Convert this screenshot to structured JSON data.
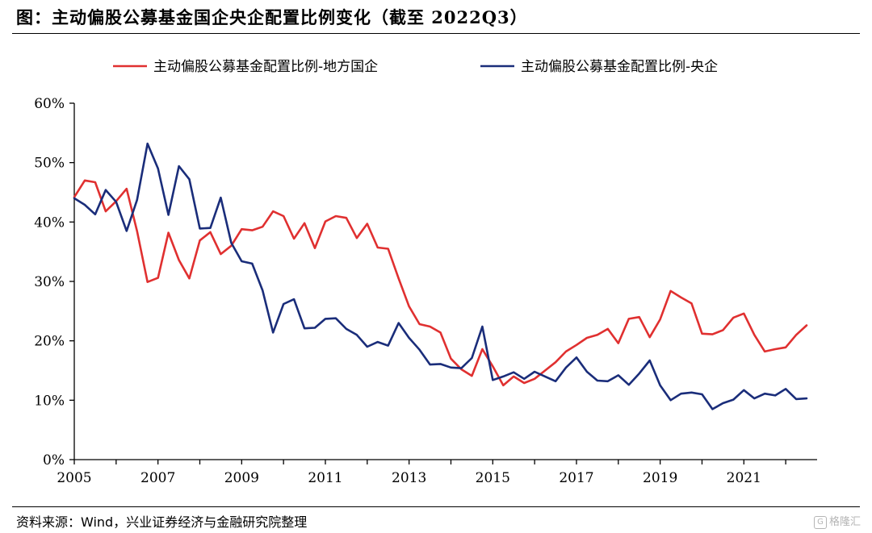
{
  "header": {
    "title": "图：主动偏股公募基金国企央企配置比例变化（截至 2022Q3）"
  },
  "footer": {
    "source": "资料来源：Wind，兴业证券经济与金融研究院整理",
    "watermark_text": "格隆汇",
    "watermark_icon": "g-logo-icon"
  },
  "chart_data": {
    "type": "line",
    "title": "",
    "xlabel": "",
    "ylabel": "",
    "ylim": [
      0,
      60
    ],
    "y_ticks": [
      "0%",
      "10%",
      "20%",
      "30%",
      "40%",
      "50%",
      "60%"
    ],
    "x_ticks": [
      "2005",
      "2007",
      "2009",
      "2011",
      "2013",
      "2015",
      "2017",
      "2019",
      "2021"
    ],
    "xlim": [
      "2005Q1",
      "2022Q4"
    ],
    "x": [
      "2005Q1",
      "2005Q2",
      "2005Q3",
      "2005Q4",
      "2006Q1",
      "2006Q2",
      "2006Q3",
      "2006Q4",
      "2007Q1",
      "2007Q2",
      "2007Q3",
      "2007Q4",
      "2008Q1",
      "2008Q2",
      "2008Q3",
      "2008Q4",
      "2009Q1",
      "2009Q2",
      "2009Q3",
      "2009Q4",
      "2010Q1",
      "2010Q2",
      "2010Q3",
      "2010Q4",
      "2011Q1",
      "2011Q2",
      "2011Q3",
      "2011Q4",
      "2012Q1",
      "2012Q2",
      "2012Q3",
      "2012Q4",
      "2013Q1",
      "2013Q2",
      "2013Q3",
      "2013Q4",
      "2014Q1",
      "2014Q2",
      "2014Q3",
      "2014Q4",
      "2015Q1",
      "2015Q2",
      "2015Q3",
      "2015Q4",
      "2016Q1",
      "2016Q2",
      "2016Q3",
      "2016Q4",
      "2017Q1",
      "2017Q2",
      "2017Q3",
      "2017Q4",
      "2018Q1",
      "2018Q2",
      "2018Q3",
      "2018Q4",
      "2019Q1",
      "2019Q2",
      "2019Q3",
      "2019Q4",
      "2020Q1",
      "2020Q2",
      "2020Q3",
      "2020Q4",
      "2021Q1",
      "2021Q2",
      "2021Q3",
      "2021Q4",
      "2022Q1",
      "2022Q2",
      "2022Q3"
    ],
    "legend": "top",
    "grid": false,
    "series": [
      {
        "name": "主动偏股公募基金配置比例-地方国企",
        "color": "#e03030",
        "values": [
          44.2,
          47.0,
          46.7,
          41.8,
          43.5,
          45.6,
          38.5,
          29.9,
          30.6,
          38.2,
          33.6,
          30.5,
          36.9,
          38.3,
          34.6,
          36.0,
          38.8,
          38.6,
          39.2,
          41.8,
          41.0,
          37.2,
          39.8,
          35.6,
          40.1,
          41.0,
          40.7,
          37.3,
          39.7,
          35.7,
          35.5,
          30.5,
          25.8,
          22.8,
          22.4,
          21.4,
          17.0,
          15.2,
          14.1,
          18.6,
          15.7,
          12.5,
          14.0,
          12.9,
          13.6,
          15.0,
          16.4,
          18.2,
          19.3,
          20.5,
          21.0,
          22.0,
          19.6,
          23.7,
          24.0,
          20.6,
          23.6,
          28.4,
          27.3,
          26.3,
          21.2,
          21.1,
          21.8,
          23.9,
          24.6,
          21.0,
          18.2,
          18.6,
          18.9,
          21.0,
          22.6
        ]
      },
      {
        "name": "主动偏股公募基金配置比例-央企",
        "color": "#1a2d7a",
        "values": [
          44.0,
          42.9,
          41.3,
          45.4,
          43.4,
          38.5,
          43.7,
          53.2,
          49.0,
          41.2,
          49.4,
          47.2,
          38.9,
          39.0,
          44.1,
          36.5,
          33.4,
          33.0,
          28.5,
          21.4,
          26.2,
          27.0,
          22.1,
          22.2,
          23.7,
          23.8,
          22.0,
          21.0,
          19.0,
          19.8,
          19.2,
          23.0,
          20.5,
          18.5,
          16.0,
          16.1,
          15.5,
          15.4,
          17.1,
          22.4,
          13.4,
          14.0,
          14.7,
          13.6,
          14.8,
          14.0,
          13.2,
          15.5,
          17.2,
          14.8,
          13.3,
          13.2,
          14.2,
          12.6,
          14.5,
          16.7,
          12.5,
          10.0,
          11.1,
          11.3,
          11.0,
          8.5,
          9.5,
          10.1,
          11.7,
          10.3,
          11.1,
          10.8,
          11.9,
          10.2,
          10.3
        ]
      }
    ]
  }
}
